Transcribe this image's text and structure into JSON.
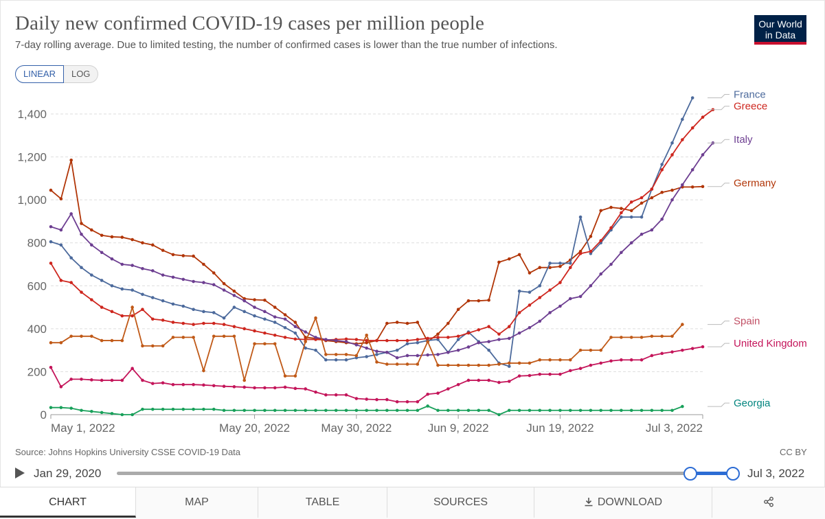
{
  "header": {
    "title": "Daily new confirmed COVID-19 cases per million people",
    "subtitle": "7-day rolling average. Due to limited testing, the number of confirmed cases is lower than the true number of infections.",
    "logo_line1": "Our World",
    "logo_line2": "in Data"
  },
  "scale_toggle": {
    "linear": "LINEAR",
    "log": "LOG"
  },
  "footer": {
    "source": "Source: Johns Hopkins University CSSE COVID-19 Data",
    "license": "CC BY"
  },
  "timeline": {
    "start_label": "Jan 29, 2020",
    "end_label": "Jul 3, 2022",
    "range_start_fraction": 0.926,
    "range_end_fraction": 0.997
  },
  "tabs": {
    "chart": "CHART",
    "map": "MAP",
    "table": "TABLE",
    "sources": "SOURCES",
    "download": "DOWNLOAD"
  },
  "icons": {
    "download": "download-icon",
    "share": "share-icon",
    "play": "play-icon"
  },
  "chart_data": {
    "type": "line",
    "x_start": "2022-04-30",
    "x_end": "2022-07-03",
    "x_ticks": [
      "May 1, 2022",
      "May 20, 2022",
      "May 30, 2022",
      "Jun 9, 2022",
      "Jun 19, 2022",
      "Jul 3, 2022"
    ],
    "y_ticks": [
      "0",
      "200",
      "400",
      "600",
      "800",
      "1,000",
      "1,200",
      "1,400"
    ],
    "ylim": [
      0,
      1400
    ],
    "grid": "horizontal",
    "legend": "right",
    "series": [
      {
        "name": "Germany",
        "color": "#b13507",
        "values": [
          1045,
          1005,
          1185,
          890,
          860,
          835,
          828,
          826,
          815,
          800,
          790,
          765,
          745,
          740,
          738,
          700,
          660,
          610,
          575,
          540,
          535,
          533,
          500,
          465,
          430,
          360,
          355,
          345,
          340,
          335,
          330,
          335,
          345,
          425,
          430,
          425,
          430,
          340,
          375,
          425,
          490,
          530,
          530,
          533,
          710,
          725,
          745,
          660,
          685,
          685,
          690,
          720,
          760,
          830,
          950,
          965,
          960,
          950,
          985,
          1010,
          1035,
          1045,
          1060,
          1060,
          1062
        ]
      },
      {
        "name": "France",
        "color": "#4c6a9c",
        "values": [
          805,
          790,
          730,
          685,
          650,
          625,
          600,
          585,
          580,
          560,
          545,
          530,
          515,
          505,
          490,
          480,
          475,
          450,
          500,
          480,
          460,
          445,
          430,
          405,
          380,
          310,
          300,
          255,
          255,
          255,
          265,
          270,
          280,
          290,
          300,
          330,
          335,
          345,
          350,
          290,
          350,
          385,
          340,
          300,
          240,
          225,
          575,
          570,
          600,
          705,
          705,
          705,
          920,
          750,
          800,
          860,
          920,
          920,
          920,
          1050,
          1165,
          1265,
          1375,
          1475
        ]
      },
      {
        "name": "Greece",
        "color": "#ce261e",
        "values": [
          705,
          625,
          615,
          570,
          535,
          500,
          480,
          460,
          460,
          490,
          445,
          440,
          430,
          425,
          420,
          425,
          425,
          420,
          410,
          400,
          390,
          380,
          370,
          360,
          352,
          350,
          350,
          348,
          350,
          352,
          350,
          345,
          345,
          345,
          345,
          345,
          350,
          355,
          360,
          360,
          365,
          380,
          395,
          410,
          375,
          410,
          475,
          510,
          545,
          580,
          615,
          685,
          750,
          760,
          810,
          870,
          940,
          990,
          1010,
          1050,
          1140,
          1210,
          1280,
          1335,
          1385,
          1420
        ]
      },
      {
        "name": "Italy",
        "color": "#6d3e91",
        "values": [
          875,
          860,
          935,
          840,
          790,
          755,
          725,
          700,
          695,
          680,
          670,
          650,
          640,
          630,
          620,
          615,
          605,
          580,
          555,
          530,
          500,
          480,
          455,
          445,
          410,
          385,
          360,
          350,
          345,
          340,
          325,
          310,
          295,
          290,
          265,
          275,
          275,
          278,
          280,
          290,
          300,
          315,
          335,
          340,
          350,
          355,
          380,
          405,
          435,
          475,
          505,
          540,
          550,
          600,
          655,
          700,
          755,
          800,
          840,
          860,
          910,
          1000,
          1070,
          1140,
          1210,
          1265
        ]
      },
      {
        "name": "Spain",
        "color": "#c15065",
        "line_color": "#c05917",
        "values": [
          335,
          335,
          365,
          365,
          365,
          345,
          345,
          345,
          500,
          320,
          320,
          320,
          360,
          360,
          360,
          205,
          365,
          365,
          365,
          160,
          330,
          330,
          330,
          180,
          180,
          340,
          450,
          280,
          280,
          280,
          275,
          370,
          245,
          235,
          235,
          235,
          235,
          340,
          230,
          230,
          230,
          230,
          230,
          230,
          235,
          240,
          240,
          240,
          255,
          255,
          255,
          255,
          300,
          300,
          300,
          360,
          360,
          360,
          360,
          365,
          365,
          365,
          420
        ]
      },
      {
        "name": "United Kingdom",
        "color": "#c4155a",
        "values": [
          220,
          130,
          165,
          165,
          162,
          160,
          160,
          160,
          215,
          160,
          145,
          148,
          140,
          140,
          140,
          138,
          135,
          132,
          130,
          128,
          125,
          125,
          125,
          128,
          122,
          120,
          105,
          92,
          92,
          92,
          75,
          72,
          70,
          70,
          60,
          60,
          60,
          95,
          100,
          120,
          140,
          160,
          160,
          160,
          150,
          155,
          180,
          182,
          188,
          188,
          188,
          205,
          215,
          230,
          240,
          250,
          255,
          255,
          255,
          275,
          285,
          292,
          300,
          308,
          316
        ]
      },
      {
        "name": "Georgia",
        "color": "#00847e",
        "line_color": "#18a05a",
        "values": [
          33,
          33,
          30,
          20,
          15,
          10,
          5,
          0,
          0,
          25,
          25,
          25,
          25,
          25,
          25,
          25,
          25,
          20,
          20,
          20,
          20,
          20,
          20,
          20,
          20,
          20,
          20,
          20,
          20,
          20,
          20,
          20,
          20,
          20,
          20,
          20,
          20,
          40,
          20,
          20,
          20,
          20,
          20,
          20,
          0,
          20,
          20,
          20,
          20,
          20,
          20,
          20,
          20,
          20,
          20,
          20,
          20,
          20,
          20,
          20,
          20,
          20,
          38
        ]
      }
    ]
  }
}
